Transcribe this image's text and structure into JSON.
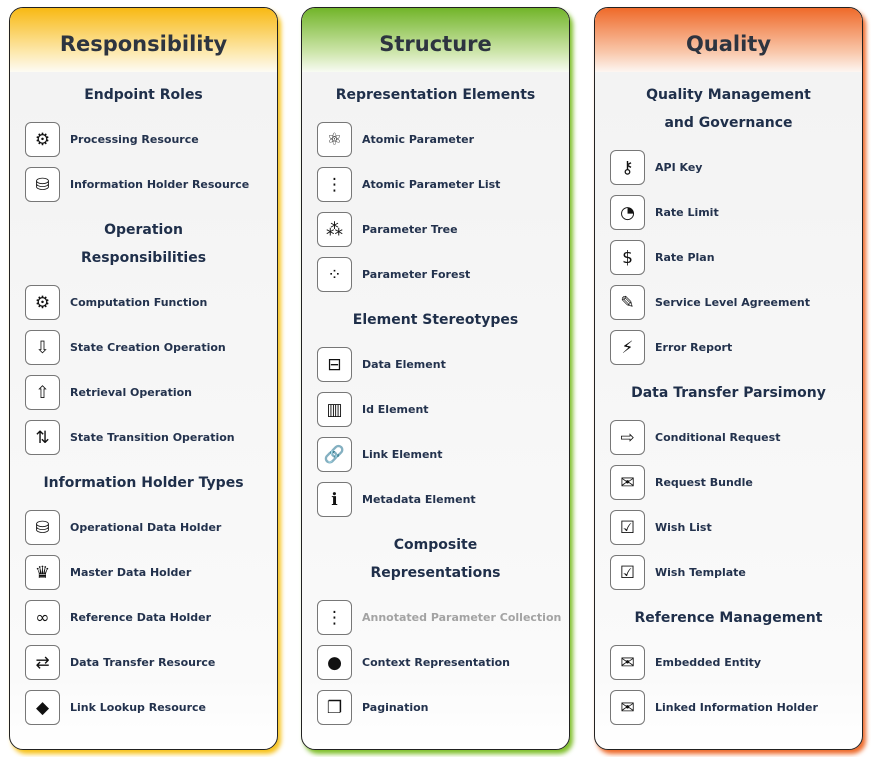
{
  "columns": [
    {
      "title": "Responsibility",
      "accent": "#f8b914",
      "sections": [
        {
          "heading": "Endpoint Roles",
          "items": [
            {
              "label": "Processing Resource",
              "icon": "processing-resource-icon",
              "glyph": "⚙"
            },
            {
              "label": "Information Holder Resource",
              "icon": "information-holder-icon",
              "glyph": "⛁"
            }
          ]
        },
        {
          "heading": "Operation Responsibilities",
          "items": [
            {
              "label": "Computation Function",
              "icon": "computation-function-icon",
              "glyph": "⚙"
            },
            {
              "label": "State Creation Operation",
              "icon": "state-creation-icon",
              "glyph": "⇩"
            },
            {
              "label": "Retrieval Operation",
              "icon": "retrieval-operation-icon",
              "glyph": "⇧"
            },
            {
              "label": "State Transition Operation",
              "icon": "state-transition-icon",
              "glyph": "⇅"
            }
          ]
        },
        {
          "heading": "Information Holder Types",
          "items": [
            {
              "label": "Operational Data Holder",
              "icon": "operational-data-holder-icon",
              "glyph": "⛁"
            },
            {
              "label": "Master Data Holder",
              "icon": "master-data-holder-icon",
              "glyph": "♛"
            },
            {
              "label": "Reference Data Holder",
              "icon": "reference-data-holder-icon",
              "glyph": "∞"
            },
            {
              "label": "Data Transfer Resource",
              "icon": "data-transfer-resource-icon",
              "glyph": "⇄"
            },
            {
              "label": "Link Lookup Resource",
              "icon": "link-lookup-resource-icon",
              "glyph": "◆"
            }
          ]
        }
      ]
    },
    {
      "title": "Structure",
      "accent": "#72b52a",
      "sections": [
        {
          "heading": "Representation Elements",
          "items": [
            {
              "label": "Atomic Parameter",
              "icon": "atomic-parameter-icon",
              "glyph": "⚛"
            },
            {
              "label": "Atomic Parameter List",
              "icon": "atomic-parameter-list-icon",
              "glyph": "⋮"
            },
            {
              "label": "Parameter Tree",
              "icon": "parameter-tree-icon",
              "glyph": "⁂"
            },
            {
              "label": "Parameter Forest",
              "icon": "parameter-forest-icon",
              "glyph": "⁘"
            }
          ]
        },
        {
          "heading": "Element Stereotypes",
          "items": [
            {
              "label": "Data Element",
              "icon": "data-element-icon",
              "glyph": "⊟"
            },
            {
              "label": "Id Element",
              "icon": "id-element-icon",
              "glyph": "▥"
            },
            {
              "label": "Link Element",
              "icon": "link-element-icon",
              "glyph": "🔗"
            },
            {
              "label": "Metadata Element",
              "icon": "metadata-element-icon",
              "glyph": "ℹ"
            }
          ]
        },
        {
          "heading": "Composite Representations",
          "items": [
            {
              "label": "Annotated Parameter Collection",
              "icon": "annotated-parameter-collection-icon",
              "glyph": "⋮",
              "disabled": true
            },
            {
              "label": "Context Representation",
              "icon": "context-representation-icon",
              "glyph": "●"
            },
            {
              "label": "Pagination",
              "icon": "pagination-icon",
              "glyph": "❐"
            }
          ]
        }
      ]
    },
    {
      "title": "Quality",
      "accent": "#ef6a2a",
      "sections": [
        {
          "heading": "Quality Management and Governance",
          "items": [
            {
              "label": "API Key",
              "icon": "api-key-icon",
              "glyph": "⚷"
            },
            {
              "label": "Rate Limit",
              "icon": "rate-limit-icon",
              "glyph": "◔"
            },
            {
              "label": "Rate Plan",
              "icon": "rate-plan-icon",
              "glyph": "$"
            },
            {
              "label": "Service Level Agreement",
              "icon": "service-level-agreement-icon",
              "glyph": "✎"
            },
            {
              "label": "Error Report",
              "icon": "error-report-icon",
              "glyph": "⚡"
            }
          ]
        },
        {
          "heading": "Data Transfer Parsimony",
          "items": [
            {
              "label": "Conditional Request",
              "icon": "conditional-request-icon",
              "glyph": "⇨"
            },
            {
              "label": "Request Bundle",
              "icon": "request-bundle-icon",
              "glyph": "✉"
            },
            {
              "label": "Wish List",
              "icon": "wish-list-icon",
              "glyph": "☑"
            },
            {
              "label": "Wish Template",
              "icon": "wish-template-icon",
              "glyph": "☑"
            }
          ]
        },
        {
          "heading": "Reference Management",
          "items": [
            {
              "label": "Embedded Entity",
              "icon": "embedded-entity-icon",
              "glyph": "✉"
            },
            {
              "label": "Linked Information Holder",
              "icon": "linked-information-holder-icon",
              "glyph": "✉"
            }
          ]
        }
      ]
    }
  ]
}
